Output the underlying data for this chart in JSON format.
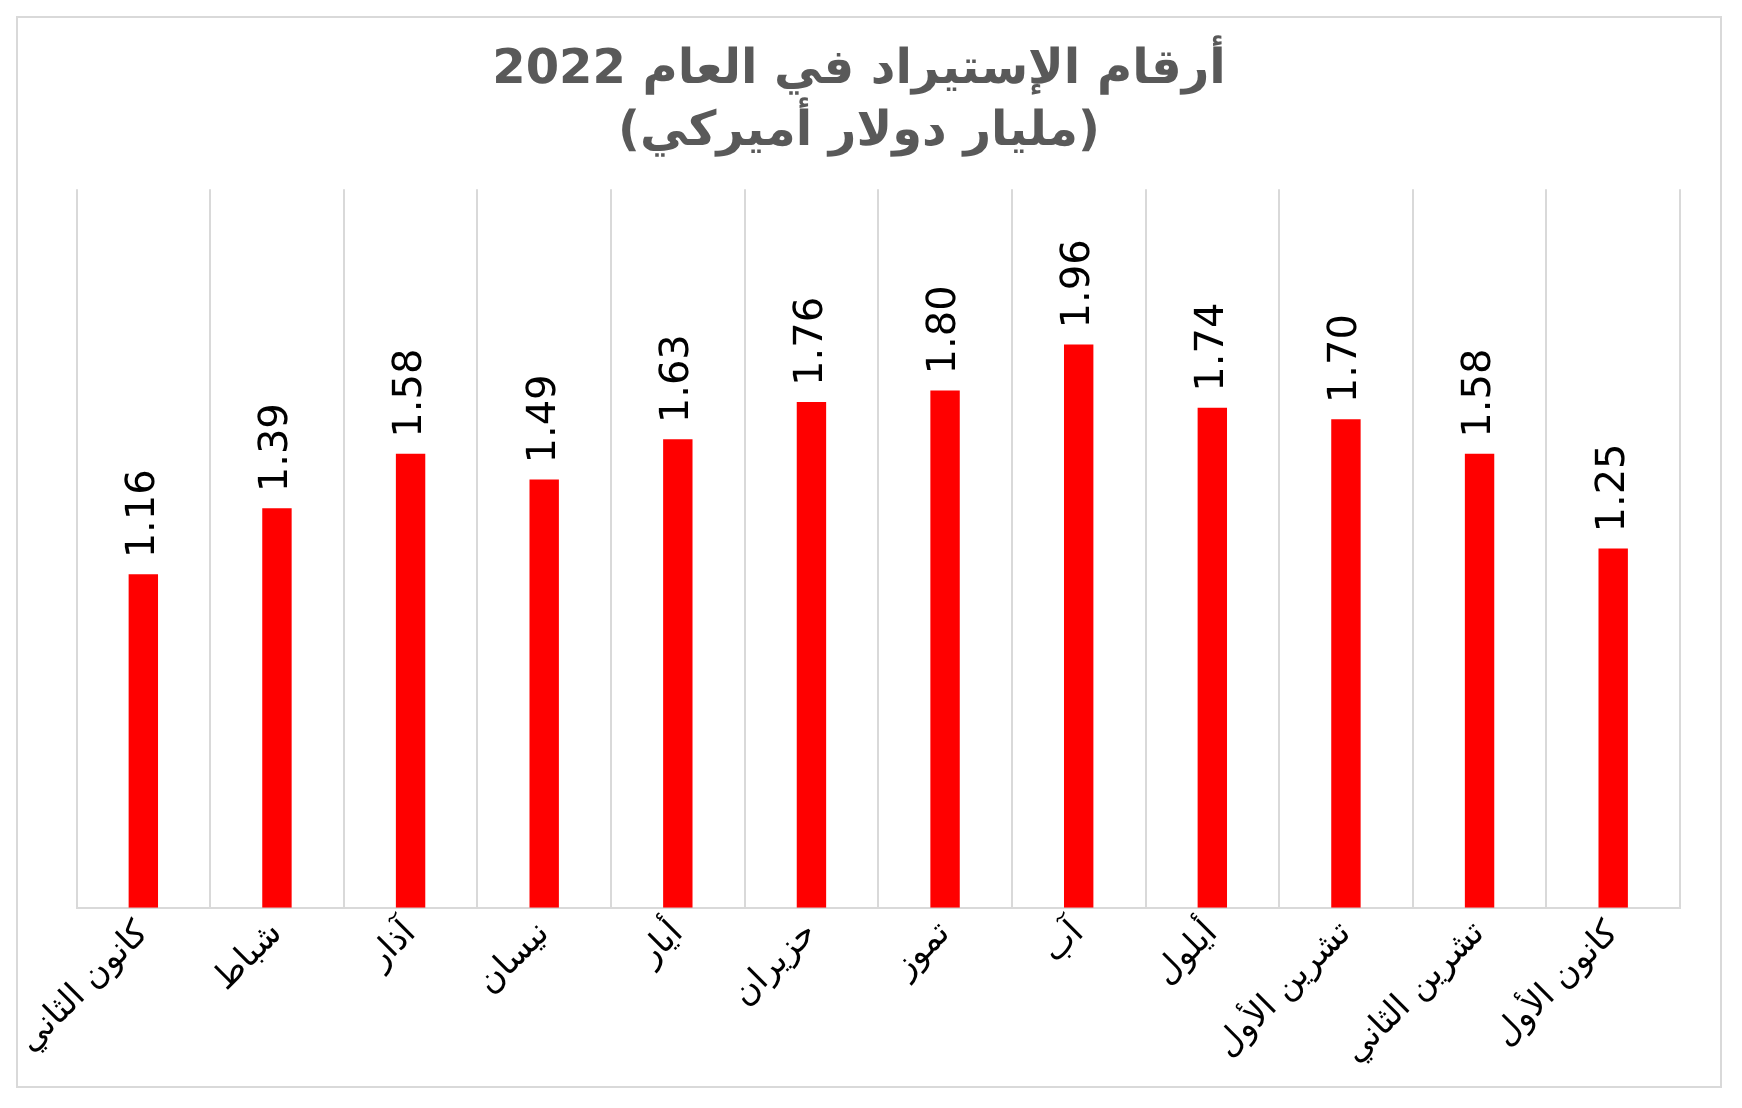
{
  "chart_data": {
    "type": "bar",
    "title": "أرقام الإستيراد في العام 2022",
    "subtitle": "(مليار دولار أميركي)",
    "categories": [
      "كانون الثاني",
      "شباط",
      "آذار",
      "نيسان",
      "أيار",
      "حزيران",
      "تموز",
      "آب",
      "أيلول",
      "تشرين الأول",
      "تشرين الثاني",
      "كانون الأول"
    ],
    "values": [
      1.16,
      1.39,
      1.58,
      1.49,
      1.63,
      1.76,
      1.8,
      1.96,
      1.74,
      1.7,
      1.58,
      1.25
    ],
    "value_labels": [
      "1.16",
      "1.39",
      "1.58",
      "1.49",
      "1.63",
      "1.76",
      "1.80",
      "1.96",
      "1.74",
      "1.70",
      "1.58",
      "1.25"
    ],
    "color": "#ff0000",
    "grid": "x",
    "legend": false,
    "tick_labels": "x"
  }
}
